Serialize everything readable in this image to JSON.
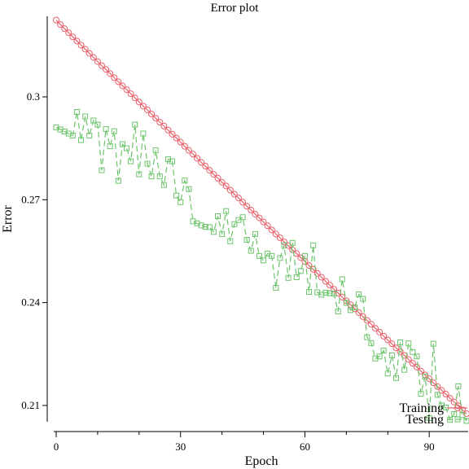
{
  "chart_data": {
    "type": "line",
    "title": "Error plot",
    "xlabel": "Epoch",
    "ylabel": "Error",
    "xlim": [
      0,
      99
    ],
    "ylim": [
      0.205,
      0.3235
    ],
    "xticks": [
      0,
      30,
      60,
      90
    ],
    "xticklabels": [
      "0",
      "30",
      "60",
      "90"
    ],
    "yticks": [
      0.21,
      0.24,
      0.27,
      0.3
    ],
    "yticklabels": [
      "0.21",
      "0.24",
      "0.27",
      "0.3"
    ],
    "grid": false,
    "legend_position": "bottom-right",
    "x": [
      0,
      1,
      2,
      3,
      4,
      5,
      6,
      7,
      8,
      9,
      10,
      11,
      12,
      13,
      14,
      15,
      16,
      17,
      18,
      19,
      20,
      21,
      22,
      23,
      24,
      25,
      26,
      27,
      28,
      29,
      30,
      31,
      32,
      33,
      34,
      35,
      36,
      37,
      38,
      39,
      40,
      41,
      42,
      43,
      44,
      45,
      46,
      47,
      48,
      49,
      50,
      51,
      52,
      53,
      54,
      55,
      56,
      57,
      58,
      59,
      60,
      61,
      62,
      63,
      64,
      65,
      66,
      67,
      68,
      69,
      70,
      71,
      72,
      73,
      74,
      75,
      76,
      77,
      78,
      79,
      80,
      81,
      82,
      83,
      84,
      85,
      86,
      87,
      88,
      89,
      90,
      91,
      92,
      93,
      94,
      95,
      96,
      97,
      98,
      99
    ],
    "series": [
      {
        "name": "Training",
        "color": "#e8606a",
        "marker": "circle",
        "linestyle": "solid",
        "values": [
          0.3224,
          0.3211,
          0.3199,
          0.3187,
          0.3175,
          0.3163,
          0.3151,
          0.3139,
          0.3127,
          0.3115,
          0.3103,
          0.3091,
          0.308,
          0.3068,
          0.3056,
          0.3044,
          0.3032,
          0.3021,
          0.3009,
          0.2997,
          0.2985,
          0.2973,
          0.2962,
          0.295,
          0.2938,
          0.2926,
          0.2915,
          0.2903,
          0.2891,
          0.288,
          0.2868,
          0.2856,
          0.2844,
          0.2833,
          0.2821,
          0.2809,
          0.2798,
          0.2786,
          0.2774,
          0.2763,
          0.2751,
          0.274,
          0.2728,
          0.2716,
          0.2705,
          0.2693,
          0.2681,
          0.267,
          0.2658,
          0.2647,
          0.2635,
          0.2624,
          0.2612,
          0.26,
          0.2589,
          0.2577,
          0.2566,
          0.2554,
          0.2543,
          0.2531,
          0.252,
          0.2508,
          0.2497,
          0.2485,
          0.2474,
          0.2462,
          0.2451,
          0.2439,
          0.2428,
          0.2416,
          0.2405,
          0.2394,
          0.2382,
          0.2371,
          0.2359,
          0.2348,
          0.2337,
          0.2325,
          0.2314,
          0.2302,
          0.2291,
          0.228,
          0.2268,
          0.2257,
          0.2246,
          0.2234,
          0.2223,
          0.2212,
          0.22,
          0.2189,
          0.2178,
          0.2166,
          0.2155,
          0.2144,
          0.2133,
          0.2121,
          0.211,
          0.2099,
          0.2087,
          0.2076
        ]
      },
      {
        "name": "Testing",
        "color": "#6cc46c",
        "marker": "square",
        "linestyle": "dashed",
        "values": [
          0.2911,
          0.2905,
          0.2899,
          0.2893,
          0.2887,
          0.2956,
          0.2874,
          0.2943,
          0.2887,
          0.2931,
          0.2919,
          0.2786,
          0.2906,
          0.2856,
          0.29,
          0.2755,
          0.2862,
          0.285,
          0.2812,
          0.2919,
          0.2774,
          0.2893,
          0.2805,
          0.2768,
          0.2844,
          0.2768,
          0.2743,
          0.2818,
          0.2812,
          0.2712,
          0.2693,
          0.2756,
          0.2731,
          0.2637,
          0.2631,
          0.2625,
          0.2621,
          0.262,
          0.2606,
          0.2652,
          0.26,
          0.2667,
          0.2579,
          0.2629,
          0.2641,
          0.2649,
          0.2583,
          0.2551,
          0.26,
          0.2536,
          0.2523,
          0.2543,
          0.2536,
          0.2443,
          0.253,
          0.2567,
          0.2472,
          0.2574,
          0.2474,
          0.2492,
          0.2536,
          0.2431,
          0.2567,
          0.243,
          0.2423,
          0.2429,
          0.2427,
          0.2426,
          0.2374,
          0.2468,
          0.2399,
          0.2378,
          0.2386,
          0.2424,
          0.2411,
          0.2299,
          0.2282,
          0.2237,
          0.2243,
          0.226,
          0.2193,
          0.2246,
          0.218,
          0.2284,
          0.2204,
          0.2281,
          0.2256,
          0.2243,
          0.2134,
          0.2184,
          0.2063,
          0.228,
          0.2131,
          0.21,
          0.2094,
          0.2058,
          0.2075,
          0.2156,
          0.2072,
          0.2055
        ]
      }
    ]
  }
}
